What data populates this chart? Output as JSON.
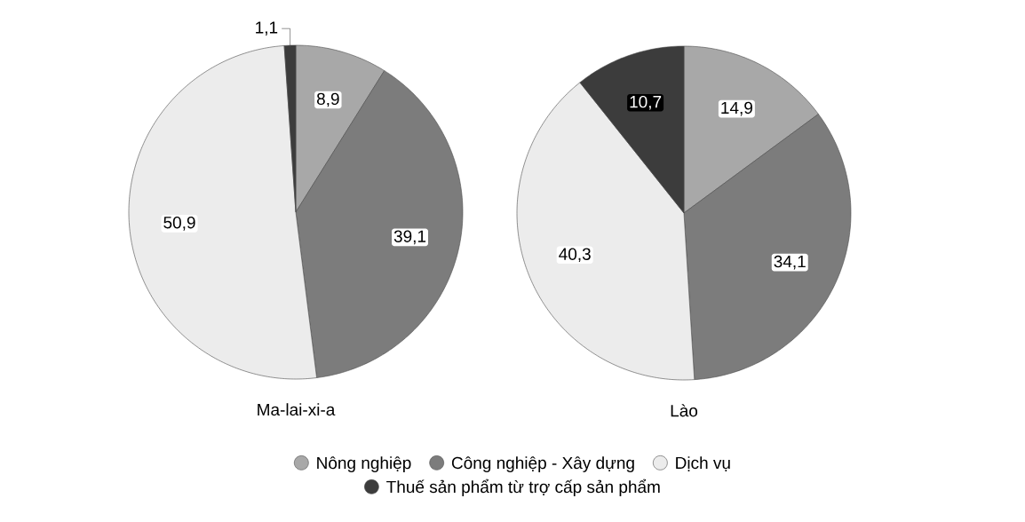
{
  "chart_data": [
    {
      "type": "pie",
      "title": "Ma-lai-xi-a",
      "categories": [
        "Nông nghiệp",
        "Công nghiệp - Xây dựng",
        "Dịch vụ",
        "Thuế sản phẩm từ trợ cấp sản phẩm"
      ],
      "values": [
        8.9,
        39.1,
        50.9,
        1.1
      ],
      "value_labels": [
        "8,9",
        "39,1",
        "50,9",
        "1,1"
      ],
      "colors": [
        "#a8a8a8",
        "#7c7c7c",
        "#ececec",
        "#3c3c3c"
      ],
      "legend": "bottom"
    },
    {
      "type": "pie",
      "title": "Lào",
      "categories": [
        null,
        null,
        null,
        null
      ],
      "values": [
        14.9,
        34.1,
        40.3,
        10.7
      ],
      "value_labels": [
        "14,9",
        "34,1",
        "40,3",
        "10,7"
      ],
      "colors": [
        "#a8a8a8",
        "#7c7c7c",
        "#ececec",
        "#3c3c3c"
      ]
    }
  ]
}
